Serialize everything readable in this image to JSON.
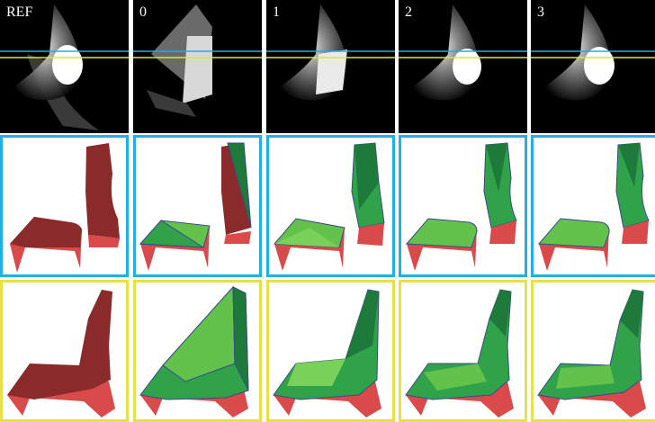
{
  "columns": [
    {
      "label": "REF",
      "variant": "ref"
    },
    {
      "label": "0",
      "variant": "stage0"
    },
    {
      "label": "1",
      "variant": "stage1"
    },
    {
      "label": "2",
      "variant": "stage2"
    },
    {
      "label": "3",
      "variant": "stage3"
    }
  ],
  "colors": {
    "row_frame_blue": "#1fb1e6",
    "row_frame_yellow": "#e8e04a",
    "scanline_blue": "#2aa7e0",
    "scanline_yellow": "#e6e233",
    "ref_surface": "#8a2a2a",
    "ref_side": "#d94a4a",
    "approx_green_light": "#62c24c",
    "approx_green_dark": "#1e7a3a",
    "edge": "#3a4a8a"
  }
}
